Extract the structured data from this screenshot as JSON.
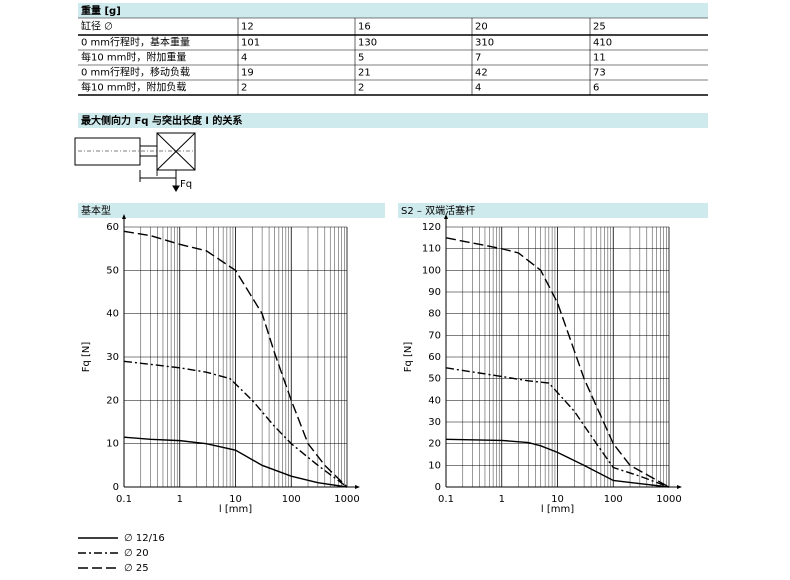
{
  "weight_section": {
    "title": "重量 [g]"
  },
  "table": {
    "header": [
      "缸径 ∅",
      "12",
      "16",
      "20",
      "25"
    ],
    "rows": [
      [
        "0 mm行程时，基本重量",
        "101",
        "130",
        "310",
        "410"
      ],
      [
        "每10 mm时，附加重量",
        "4",
        "5",
        "7",
        "11"
      ],
      [
        "0 mm行程时，移动负载",
        "19",
        "21",
        "42",
        "73"
      ],
      [
        "每10 mm时，附加负载",
        "2",
        "2",
        "4",
        "6"
      ]
    ]
  },
  "force_section": {
    "title": "最大侧向力 Fq 与突出长度 l 的关系"
  },
  "diagram": {
    "l_label": "l",
    "force_label": "Fq"
  },
  "chart_data": [
    {
      "type": "line",
      "title": "基本型",
      "y_label": "Fq [N]",
      "x_label": "l [mm]",
      "log_x": true,
      "xlim": [
        0.1,
        1000
      ],
      "xticks": [
        0.1,
        1,
        10,
        100,
        1000
      ],
      "ylim": [
        0,
        60
      ],
      "yticks": [
        0,
        10,
        20,
        30,
        40,
        50,
        60
      ],
      "grid": true,
      "series": [
        {
          "name": "∅ 12/16",
          "color": "#000000",
          "style": "solid",
          "x": [
            0.1,
            0.3,
            1,
            3,
            10,
            30,
            100,
            300,
            1000
          ],
          "values": [
            11.5,
            11,
            10.7,
            10,
            8.5,
            5,
            2.5,
            1,
            0
          ]
        },
        {
          "name": "∅ 20",
          "color": "#000000",
          "style": "dashdot",
          "x": [
            0.1,
            0.3,
            1,
            3,
            8,
            20,
            50,
            100,
            300,
            1000
          ],
          "values": [
            29,
            28.3,
            27.5,
            26.5,
            25,
            20,
            14,
            10,
            5,
            0
          ]
        },
        {
          "name": "∅ 25",
          "color": "#000000",
          "style": "dash",
          "x": [
            0.1,
            0.3,
            1,
            3,
            10,
            30,
            50,
            100,
            200,
            400,
            1000
          ],
          "values": [
            59,
            58,
            56,
            54.5,
            50,
            40,
            31,
            20,
            10,
            5,
            0
          ]
        }
      ]
    },
    {
      "type": "line",
      "title": "S2 – 双端活塞杆",
      "y_label": "Fq [N]",
      "x_label": "l [mm]",
      "log_x": true,
      "xlim": [
        0.1,
        1000
      ],
      "xticks": [
        0.1,
        1,
        10,
        100,
        1000
      ],
      "ylim": [
        0,
        120
      ],
      "yticks": [
        0,
        10,
        20,
        30,
        40,
        50,
        60,
        70,
        80,
        90,
        100,
        110,
        120
      ],
      "grid": true,
      "series": [
        {
          "color": "#000000",
          "style": "solid",
          "x": [
            0.1,
            1,
            3,
            5,
            10,
            30,
            100,
            1000
          ],
          "values": [
            22,
            21.5,
            20.5,
            19,
            16,
            10,
            3,
            0
          ]
        },
        {
          "color": "#000000",
          "style": "dashdot",
          "x": [
            0.1,
            1,
            3,
            7,
            20,
            50,
            100,
            300,
            1000
          ],
          "values": [
            55,
            51,
            49,
            48,
            35,
            20,
            9,
            5,
            0
          ]
        },
        {
          "color": "#000000",
          "style": "dash",
          "x": [
            0.1,
            1,
            2,
            5,
            10,
            30,
            100,
            200,
            1000
          ],
          "values": [
            115,
            110,
            108,
            100,
            85,
            50,
            20,
            10,
            0
          ]
        }
      ]
    }
  ]
}
